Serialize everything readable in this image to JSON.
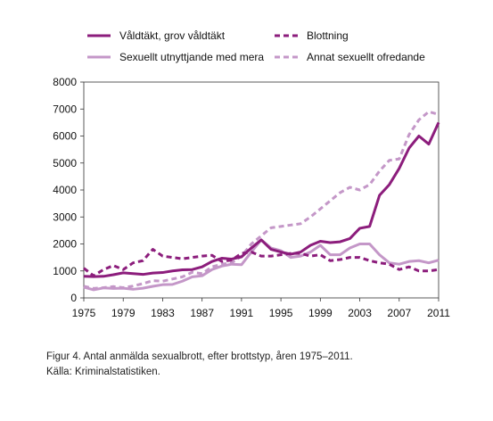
{
  "chart_data": {
    "type": "line",
    "x": [
      1975,
      1976,
      1977,
      1978,
      1979,
      1980,
      1981,
      1982,
      1983,
      1984,
      1985,
      1986,
      1987,
      1988,
      1989,
      1990,
      1991,
      1992,
      1993,
      1994,
      1995,
      1996,
      1997,
      1998,
      1999,
      2000,
      2001,
      2002,
      2003,
      2004,
      2005,
      2006,
      2007,
      2008,
      2009,
      2010,
      2011
    ],
    "xticks": [
      1975,
      1979,
      1983,
      1987,
      1991,
      1995,
      1999,
      2003,
      2007,
      2011
    ],
    "yticks": [
      0,
      1000,
      2000,
      3000,
      4000,
      5000,
      6000,
      7000,
      8000
    ],
    "xlim": [
      1975,
      2011
    ],
    "ylim": [
      0,
      8000
    ],
    "legend_position": "top",
    "series": [
      {
        "name": "Våldtäkt, grov våldtäkt",
        "color": "#8c1d7c",
        "style": "solid",
        "values": [
          800,
          790,
          800,
          860,
          930,
          900,
          870,
          920,
          940,
          1000,
          1040,
          1050,
          1150,
          1350,
          1470,
          1440,
          1520,
          1850,
          2150,
          1800,
          1700,
          1620,
          1700,
          1950,
          2100,
          2050,
          2080,
          2200,
          2580,
          2650,
          3800,
          4200,
          4800,
          5550,
          6000,
          5700,
          6500
        ]
      },
      {
        "name": "Blottning",
        "color": "#8c1d7c",
        "style": "dashed",
        "values": [
          1100,
          820,
          1050,
          1200,
          1050,
          1300,
          1380,
          1800,
          1550,
          1500,
          1450,
          1500,
          1550,
          1580,
          1350,
          1400,
          1650,
          1700,
          1550,
          1550,
          1600,
          1650,
          1650,
          1550,
          1600,
          1380,
          1420,
          1500,
          1500,
          1380,
          1300,
          1250,
          1050,
          1150,
          1000,
          1000,
          1050
        ]
      },
      {
        "name": "Sexuellt utnyttjande med mera",
        "color": "#c497c8",
        "style": "solid",
        "values": [
          400,
          300,
          370,
          350,
          360,
          320,
          360,
          430,
          490,
          500,
          620,
          780,
          820,
          1050,
          1180,
          1250,
          1230,
          1700,
          2150,
          1850,
          1750,
          1500,
          1550,
          1700,
          1950,
          1600,
          1600,
          1850,
          2000,
          2000,
          1600,
          1300,
          1250,
          1350,
          1380,
          1300,
          1400
        ]
      },
      {
        "name": "Annat sexuellt ofredande",
        "color": "#c497c8",
        "style": "dashed",
        "values": [
          430,
          350,
          380,
          420,
          380,
          440,
          530,
          640,
          620,
          700,
          780,
          950,
          900,
          1150,
          1250,
          1300,
          1550,
          2000,
          2300,
          2600,
          2650,
          2700,
          2750,
          3000,
          3300,
          3600,
          3900,
          4100,
          4000,
          4200,
          4700,
          5100,
          5150,
          6050,
          6600,
          6900,
          6800
        ]
      }
    ]
  },
  "caption": {
    "line1": "Figur 4. Antal anmälda sexualbrott, efter brottstyp, åren 1975–2011.",
    "line2": "Källa: Kriminalstatistiken."
  }
}
